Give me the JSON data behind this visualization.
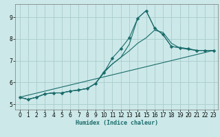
{
  "xlabel": "Humidex (Indice chaleur)",
  "bg_color": "#cce8e8",
  "grid_color": "#aacccc",
  "line_color": "#1a6b6b",
  "xlim": [
    -0.5,
    23.5
  ],
  "ylim": [
    4.75,
    9.6
  ],
  "xticks": [
    0,
    1,
    2,
    3,
    4,
    5,
    6,
    7,
    8,
    9,
    10,
    11,
    12,
    13,
    14,
    15,
    16,
    17,
    18,
    19,
    20,
    21,
    22,
    23
  ],
  "yticks": [
    5,
    6,
    7,
    8,
    9
  ],
  "line1_x": [
    0,
    1,
    2,
    3,
    4,
    5,
    6,
    7,
    8,
    9,
    10,
    11,
    12,
    13,
    14,
    15,
    16,
    17,
    18,
    19,
    20,
    21,
    22,
    23
  ],
  "line1_y": [
    5.32,
    5.22,
    5.32,
    5.47,
    5.52,
    5.52,
    5.6,
    5.65,
    5.72,
    5.95,
    6.45,
    7.12,
    7.55,
    8.05,
    8.95,
    9.3,
    8.5,
    8.2,
    7.65,
    7.6,
    7.55,
    7.47,
    7.47,
    7.47
  ],
  "line2_x": [
    0,
    1,
    2,
    3,
    4,
    5,
    6,
    7,
    8,
    9,
    10,
    11,
    12,
    13,
    14,
    15,
    16,
    17,
    18,
    19,
    20,
    21,
    22,
    23
  ],
  "line2_y": [
    5.32,
    5.22,
    5.32,
    5.47,
    5.52,
    5.52,
    5.6,
    5.65,
    5.72,
    5.95,
    6.5,
    6.85,
    7.15,
    7.45,
    7.8,
    8.05,
    8.4,
    8.3,
    7.8,
    7.58,
    7.52,
    7.47,
    7.47,
    7.47
  ],
  "line3_x": [
    0,
    1,
    2,
    3,
    4,
    5,
    6,
    7,
    8,
    9,
    10,
    11,
    12,
    13,
    14,
    15,
    16,
    17,
    18,
    19,
    20,
    21,
    22,
    23
  ],
  "line3_y": [
    5.32,
    5.22,
    5.32,
    5.47,
    5.52,
    5.52,
    5.6,
    5.65,
    5.72,
    5.95,
    6.45,
    6.85,
    7.15,
    7.75,
    8.95,
    9.3,
    8.5,
    8.2,
    7.65,
    7.6,
    7.55,
    7.47,
    7.47,
    7.47
  ],
  "line4_x": [
    0,
    23
  ],
  "line4_y": [
    5.32,
    7.47
  ]
}
